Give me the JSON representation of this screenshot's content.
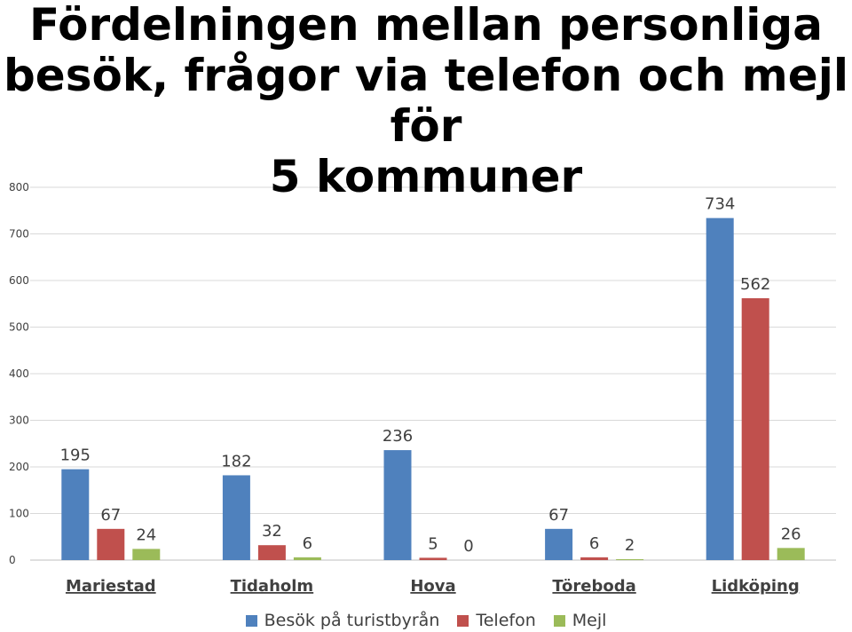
{
  "chart_data": {
    "type": "bar",
    "title_lines": [
      "Fördelningen mellan personliga",
      "besök, frågor via telefon och mejl för",
      "5 kommuner"
    ],
    "categories": [
      "Mariestad",
      "Tidaholm",
      "Hova",
      "Töreboda",
      "Lidköping"
    ],
    "series": [
      {
        "name": "Besök på turistbyrån",
        "color": "#4f81bd",
        "values": [
          195,
          182,
          236,
          67,
          734
        ]
      },
      {
        "name": "Telefon",
        "color": "#c0504d",
        "values": [
          67,
          32,
          5,
          6,
          562
        ]
      },
      {
        "name": "Mejl",
        "color": "#9bbb59",
        "values": [
          24,
          6,
          0,
          2,
          26
        ]
      }
    ],
    "ylim": [
      0,
      800
    ],
    "yticks": [
      0,
      100,
      200,
      300,
      400,
      500,
      600,
      700,
      800
    ],
    "grid": true,
    "legend_position": "bottom",
    "xlabel": "",
    "ylabel": ""
  }
}
